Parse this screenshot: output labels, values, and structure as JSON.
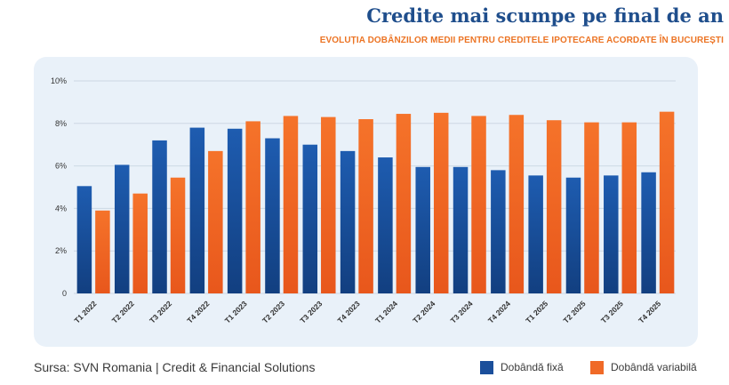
{
  "header": {
    "title": "Credite mai scumpe pe final de an",
    "subtitle": "EVOLUȚIA DOBÂNZILOR MEDII PENTRU CREDITELE IPOTECARE ACORDATE ÎN BUCUREȘTI"
  },
  "footer": {
    "source": "Sursa: SVN Romania | Credit & Financial Solutions"
  },
  "colors": {
    "fixed": "#1b4f9b",
    "variable": "#f06a27",
    "title": "#1f4e8c",
    "subtitle": "#ec7424",
    "panel": "#e9f1f9"
  },
  "chart_data": {
    "type": "bar",
    "title": "Credite mai scumpe pe final de an",
    "subtitle": "EVOLUȚIA DOBÂNZILOR MEDII PENTRU CREDITELE IPOTECARE ACORDATE ÎN BUCUREȘTI",
    "xlabel": "",
    "ylabel": "",
    "ylim": [
      0,
      10
    ],
    "yticks": [
      0,
      2,
      4,
      6,
      8,
      10
    ],
    "ytick_labels": [
      "0",
      "2%",
      "4%",
      "6%",
      "8%",
      "10%"
    ],
    "grid": true,
    "legend_position": "bottom-right",
    "categories": [
      "T1 2022",
      "T2 2022",
      "T3 2022",
      "T4 2022",
      "T1 2023",
      "T2 2023",
      "T3 2023",
      "T4 2023",
      "T1 2024",
      "T2 2024",
      "T3 2024",
      "T4 2024",
      "T1 2025",
      "T2 2025",
      "T3 2025",
      "T4 2025"
    ],
    "series": [
      {
        "name": "Dobândă fixă",
        "color": "#1b4f9b",
        "values": [
          5.05,
          6.05,
          7.2,
          7.8,
          7.75,
          7.3,
          7.0,
          6.7,
          6.4,
          5.95,
          5.95,
          5.8,
          5.55,
          5.45,
          5.55,
          5.7
        ]
      },
      {
        "name": "Dobândă variabilă",
        "color": "#f06a27",
        "values": [
          3.9,
          4.7,
          5.45,
          6.7,
          8.1,
          8.35,
          8.3,
          8.2,
          8.45,
          8.5,
          8.35,
          8.4,
          8.15,
          8.05,
          8.05,
          8.55
        ]
      }
    ]
  }
}
